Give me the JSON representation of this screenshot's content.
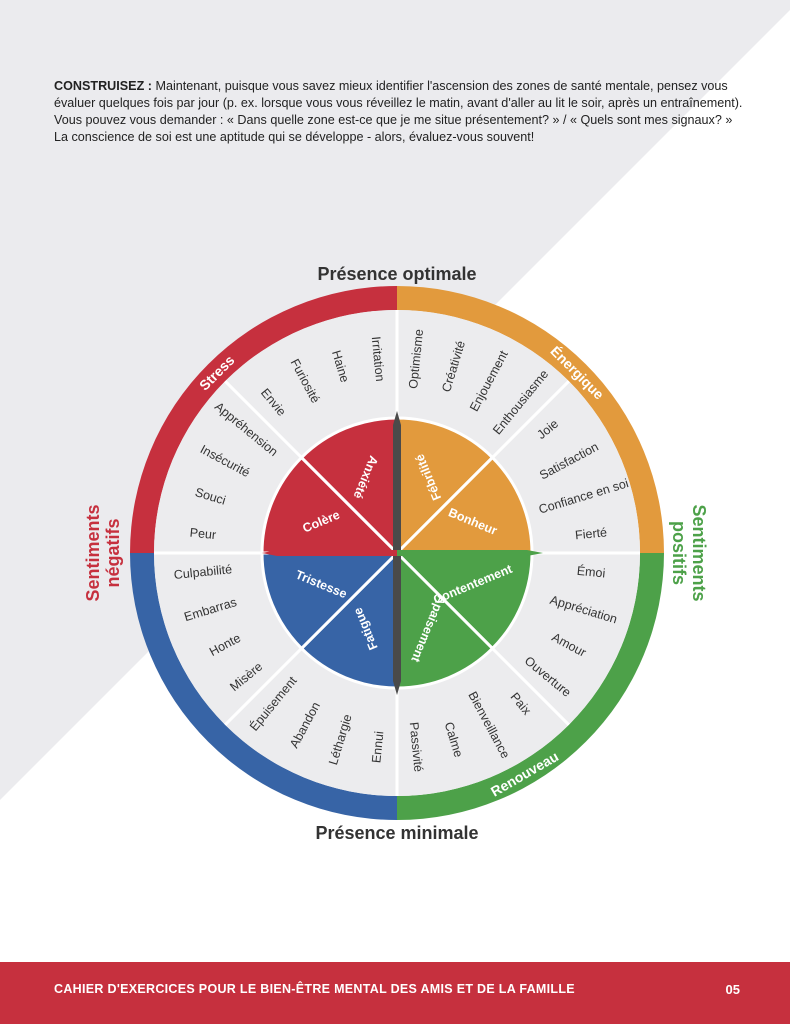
{
  "intro": {
    "lead": "CONSTRUISEZ :",
    "body": "Maintenant, puisque vous savez mieux identifier l'ascension des zones de santé mentale, pensez vous évaluer quelques fois par jour (p. ex. lorsque vous vous réveillez le matin, avant d'aller au lit le soir, après un entraînement). Vous pouvez vous demander : « Dans quelle zone est-ce que je me situe présentement? » / « Quels sont mes signaux? » La conscience de soi est une aptitude qui se développe - alors, évaluez-vous souvent!"
  },
  "wheel": {
    "top_label": "Présence optimale",
    "bottom_label": "Présence minimale",
    "left_label": [
      "Sentiments",
      "négatifs"
    ],
    "right_label": [
      "Sentiments",
      "positifs"
    ],
    "colors": {
      "red": "#c6303e",
      "orange": "#e29a3d",
      "green": "#4da149",
      "blue": "#3764a6",
      "middle": "#ececee",
      "axis": "#4a4a4a"
    },
    "quadrants": [
      {
        "zone": "Stress",
        "color": "red",
        "core": [
          "Colère",
          "Anxiété"
        ],
        "wedges": [
          [
            "Irritation",
            "Haine",
            "Furiosité",
            "Envie"
          ],
          [
            "Appréhension",
            "Insécurité",
            "Souci",
            "Peur"
          ]
        ]
      },
      {
        "zone": "Énergique",
        "color": "orange",
        "core": [
          "Fébrilité",
          "Bonheur"
        ],
        "wedges": [
          [
            "Optimisme",
            "Créativité",
            "Enjouement",
            "Enthousiasme"
          ],
          [
            "Joie",
            "Satisfaction",
            "Confiance en soi",
            "Fierté"
          ]
        ]
      },
      {
        "zone": "Renouveau",
        "color": "green",
        "core": [
          "Contentement",
          "Apaisement"
        ],
        "wedges": [
          [
            "Émoi",
            "Appréciation",
            "Amour",
            "Ouverture"
          ],
          [
            "Paix",
            "Bienveillance",
            "Calme",
            "Passivité"
          ]
        ]
      },
      {
        "zone": "",
        "color": "blue",
        "core": [
          "Fatigue",
          "Tristesse"
        ],
        "wedges": [
          [
            "Ennui",
            "Léthargie",
            "Abandon",
            "Épuisement"
          ],
          [
            "Misère",
            "Honte",
            "Embarras",
            "Culpabilité"
          ]
        ]
      }
    ]
  },
  "footer": {
    "title": "CAHIER D'EXERCICES POUR LE BIEN-ÊTRE MENTAL DES AMIS ET DE LA FAMILLE",
    "page": "05"
  }
}
